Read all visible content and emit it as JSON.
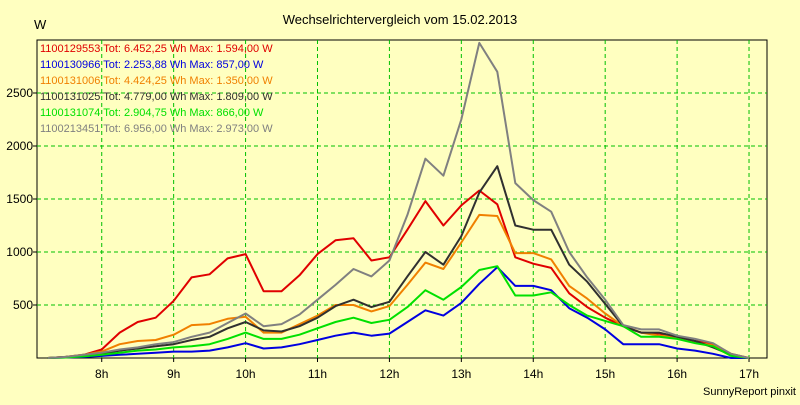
{
  "chart_data": {
    "type": "line",
    "title": "Wechselrichtervergleich vom 15.02.2013",
    "ylabel": "W",
    "xlabel": "",
    "footer": "SunnyReport pinxit",
    "grid": true,
    "legend_position": "top-left",
    "xlim": [
      7.1,
      17.25
    ],
    "ylim": [
      0,
      3000
    ],
    "x_ticks": [
      8,
      9,
      10,
      11,
      12,
      13,
      14,
      15,
      16,
      17
    ],
    "x_tick_labels": [
      "8h",
      "9h",
      "10h",
      "11h",
      "12h",
      "13h",
      "14h",
      "15h",
      "16h",
      "17h"
    ],
    "y_ticks": [
      500,
      1000,
      1500,
      2000,
      2500
    ],
    "y_tick_labels": [
      "500",
      "1000",
      "1500",
      "2000",
      "2500"
    ],
    "x": [
      7.25,
      7.5,
      7.75,
      8.0,
      8.25,
      8.5,
      8.75,
      9.0,
      9.25,
      9.5,
      9.75,
      10.0,
      10.25,
      10.5,
      10.75,
      11.0,
      11.25,
      11.5,
      11.75,
      12.0,
      12.25,
      12.5,
      12.75,
      13.0,
      13.25,
      13.5,
      13.75,
      14.0,
      14.25,
      14.5,
      14.75,
      15.0,
      15.25,
      15.5,
      15.75,
      16.0,
      16.25,
      16.5,
      16.75,
      17.0
    ],
    "series": [
      {
        "id": "1100129553",
        "label": "1100129553 Tot: 6.452,25 Wh Max: 1.594,00 W",
        "color": "#e00000",
        "values": [
          0,
          10,
          30,
          80,
          240,
          340,
          380,
          540,
          760,
          790,
          940,
          980,
          630,
          630,
          780,
          980,
          1110,
          1130,
          920,
          950,
          1210,
          1480,
          1250,
          1440,
          1580,
          1450,
          950,
          890,
          850,
          610,
          480,
          380,
          300,
          240,
          230,
          200,
          160,
          130,
          40,
          0
        ]
      },
      {
        "id": "1100130966",
        "label": "1100130966 Tot: 2.253,88 Wh Max: 857,00 W",
        "color": "#0000e0",
        "values": [
          0,
          5,
          10,
          20,
          30,
          40,
          50,
          60,
          60,
          70,
          100,
          140,
          90,
          100,
          130,
          170,
          210,
          240,
          210,
          230,
          340,
          450,
          400,
          520,
          700,
          857,
          680,
          680,
          640,
          470,
          380,
          270,
          130,
          130,
          130,
          90,
          70,
          40,
          0,
          0
        ]
      },
      {
        "id": "1100131006",
        "label": "1100131006 Tot: 4.424,25 Wh Max: 1.350,00 W",
        "color": "#f08000",
        "values": [
          0,
          10,
          30,
          60,
          130,
          160,
          170,
          220,
          310,
          320,
          370,
          390,
          240,
          240,
          320,
          400,
          500,
          500,
          440,
          490,
          690,
          900,
          840,
          1090,
          1350,
          1340,
          990,
          990,
          930,
          680,
          560,
          420,
          300,
          240,
          210,
          200,
          150,
          120,
          30,
          0
        ]
      },
      {
        "id": "1100131025",
        "label": "1100131025 Tot: 4.779,00 Wh Max: 1.809,00 W",
        "color": "#303030",
        "values": [
          0,
          10,
          20,
          40,
          70,
          90,
          110,
          130,
          170,
          200,
          280,
          340,
          260,
          250,
          300,
          380,
          490,
          550,
          480,
          530,
          770,
          1000,
          880,
          1150,
          1560,
          1809,
          1250,
          1210,
          1210,
          880,
          720,
          510,
          300,
          240,
          240,
          200,
          160,
          100,
          30,
          0
        ]
      },
      {
        "id": "1100131074",
        "label": "1100131074 Tot: 2.904,75 Wh Max: 866,00 W",
        "color": "#00e000",
        "values": [
          0,
          5,
          15,
          30,
          50,
          70,
          80,
          100,
          110,
          130,
          180,
          240,
          180,
          180,
          220,
          280,
          340,
          380,
          330,
          360,
          480,
          640,
          550,
          670,
          830,
          866,
          590,
          590,
          620,
          500,
          400,
          350,
          300,
          200,
          200,
          180,
          140,
          110,
          20,
          0
        ]
      },
      {
        "id": "1100213451",
        "label": "1100213451 Tot: 6.956,00 Wh Max: 2.973,00 W",
        "color": "#808080",
        "values": [
          0,
          10,
          30,
          50,
          80,
          100,
          130,
          150,
          200,
          240,
          330,
          420,
          300,
          320,
          410,
          550,
          690,
          840,
          770,
          920,
          1350,
          1880,
          1720,
          2250,
          2973,
          2700,
          1650,
          1490,
          1380,
          1000,
          760,
          550,
          310,
          270,
          270,
          210,
          180,
          140,
          40,
          0
        ]
      }
    ]
  }
}
